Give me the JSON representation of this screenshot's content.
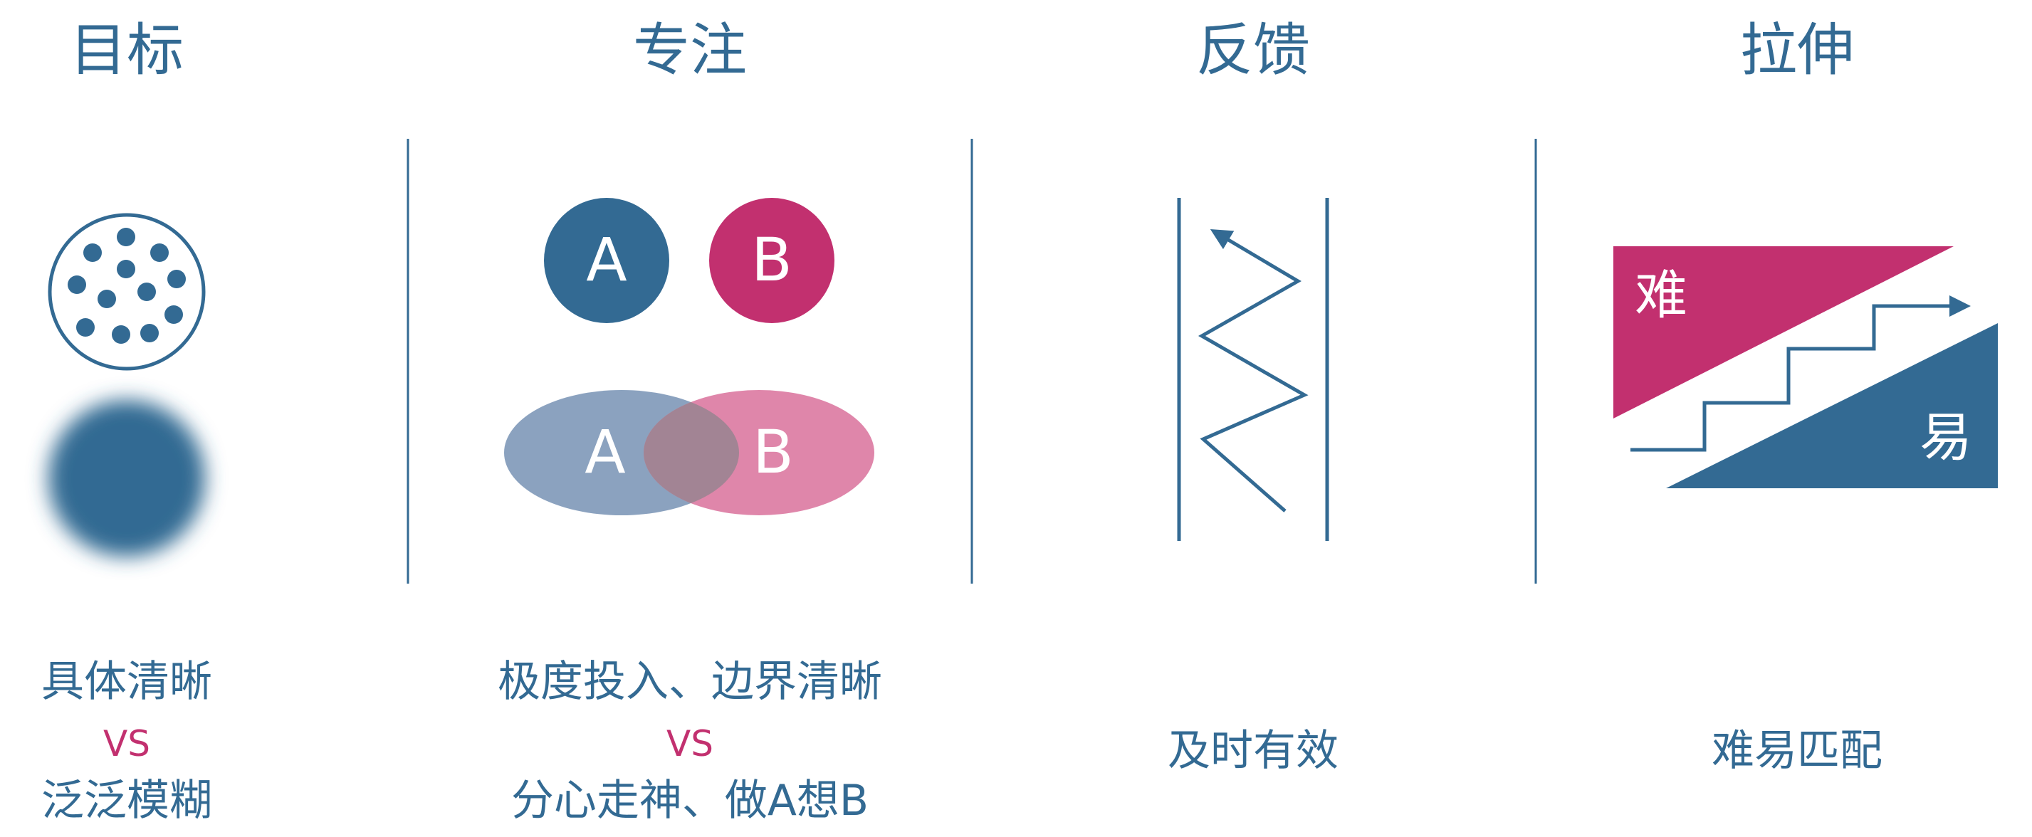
{
  "colors": {
    "blue": "#336a93",
    "pink": "#c2306f",
    "light_blue": "#8ba2bf",
    "light_pink": "#df86aa",
    "overlap": "#a28494"
  },
  "columns": [
    {
      "heading": "目标",
      "desc_top": "具体清晰",
      "vs": "VS",
      "desc_bottom": "泛泛模糊"
    },
    {
      "heading": "专注",
      "circle_a": "A",
      "circle_b": "B",
      "ellipse_a": "A",
      "ellipse_b": "B",
      "desc_top": "极度投入、边界清晰",
      "vs": "VS",
      "desc_bottom": "分心走神、做A想B"
    },
    {
      "heading": "反馈",
      "desc": "及时有效"
    },
    {
      "heading": "拉伸",
      "hard": "难",
      "easy": "易",
      "desc": "难易匹配"
    }
  ]
}
